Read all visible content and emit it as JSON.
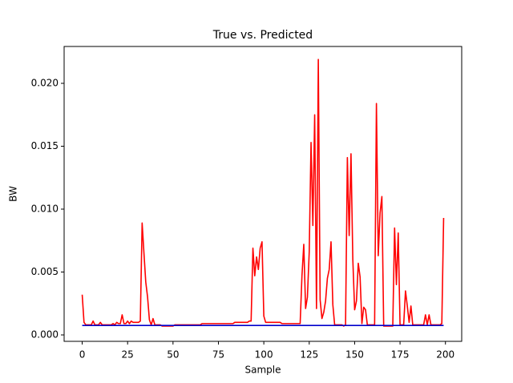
{
  "chart_data": {
    "type": "line",
    "title": "True vs. Predicted",
    "xlabel": "Sample",
    "ylabel": "BW",
    "x": [
      0,
      1,
      2,
      3,
      4,
      5,
      6,
      7,
      8,
      9,
      10,
      11,
      12,
      13,
      14,
      15,
      16,
      17,
      18,
      19,
      20,
      21,
      22,
      23,
      24,
      25,
      26,
      27,
      28,
      29,
      30,
      31,
      32,
      33,
      34,
      35,
      36,
      37,
      38,
      39,
      40,
      41,
      42,
      43,
      44,
      45,
      46,
      47,
      48,
      49,
      50,
      51,
      52,
      53,
      54,
      55,
      56,
      57,
      58,
      59,
      60,
      61,
      62,
      63,
      64,
      65,
      66,
      67,
      68,
      69,
      70,
      71,
      72,
      73,
      74,
      75,
      76,
      77,
      78,
      79,
      80,
      81,
      82,
      83,
      84,
      85,
      86,
      87,
      88,
      89,
      90,
      91,
      92,
      93,
      94,
      95,
      96,
      97,
      98,
      99,
      100,
      101,
      102,
      103,
      104,
      105,
      106,
      107,
      108,
      109,
      110,
      111,
      112,
      113,
      114,
      115,
      116,
      117,
      118,
      119,
      120,
      121,
      122,
      123,
      124,
      125,
      126,
      127,
      128,
      129,
      130,
      131,
      132,
      133,
      134,
      135,
      136,
      137,
      138,
      139,
      140,
      141,
      142,
      143,
      144,
      145,
      146,
      147,
      148,
      149,
      150,
      151,
      152,
      153,
      154,
      155,
      156,
      157,
      158,
      159,
      160,
      161,
      162,
      163,
      164,
      165,
      166,
      167,
      168,
      169,
      170,
      171,
      172,
      173,
      174,
      175,
      176,
      177,
      178,
      179,
      180,
      181,
      182,
      183,
      184,
      185,
      186,
      187,
      188,
      189,
      190,
      191,
      192,
      193,
      194,
      195,
      196,
      197,
      198,
      199
    ],
    "series": [
      {
        "color": "#ff0000",
        "values": [
          0.0032,
          0.001,
          0.0008,
          0.0008,
          0.0008,
          0.0008,
          0.0011,
          0.0008,
          0.0008,
          0.0008,
          0.001,
          0.0008,
          0.0008,
          0.0008,
          0.0008,
          0.0008,
          0.0008,
          0.0009,
          0.0008,
          0.001,
          0.0009,
          0.0009,
          0.0016,
          0.0009,
          0.0009,
          0.0011,
          0.0009,
          0.0011,
          0.001,
          0.001,
          0.001,
          0.001,
          0.0011,
          0.0089,
          0.0065,
          0.0042,
          0.003,
          0.0012,
          0.0008,
          0.0013,
          0.0008,
          0.0008,
          0.0008,
          0.0008,
          0.0007,
          0.0007,
          0.0007,
          0.0007,
          0.0007,
          0.0007,
          0.0007,
          0.0008,
          0.0008,
          0.0008,
          0.0008,
          0.0008,
          0.0008,
          0.0008,
          0.0008,
          0.0008,
          0.0008,
          0.0008,
          0.0008,
          0.0008,
          0.0008,
          0.0008,
          0.0009,
          0.0009,
          0.0009,
          0.0009,
          0.0009,
          0.0009,
          0.0009,
          0.0009,
          0.0009,
          0.0009,
          0.0009,
          0.0009,
          0.0009,
          0.0009,
          0.0009,
          0.0009,
          0.0009,
          0.0009,
          0.001,
          0.001,
          0.001,
          0.001,
          0.001,
          0.001,
          0.001,
          0.001,
          0.0011,
          0.0011,
          0.0069,
          0.0047,
          0.0062,
          0.0052,
          0.0069,
          0.0074,
          0.0015,
          0.001,
          0.001,
          0.001,
          0.001,
          0.001,
          0.001,
          0.001,
          0.001,
          0.001,
          0.0009,
          0.0009,
          0.0009,
          0.0009,
          0.0009,
          0.0009,
          0.0009,
          0.0009,
          0.0009,
          0.0009,
          0.0009,
          0.0047,
          0.0072,
          0.0021,
          0.003,
          0.0066,
          0.0153,
          0.0087,
          0.0175,
          0.0021,
          0.0219,
          0.0028,
          0.0013,
          0.0018,
          0.0027,
          0.0045,
          0.0052,
          0.0074,
          0.0024,
          0.0008,
          0.0008,
          0.0008,
          0.0008,
          0.0008,
          0.0007,
          0.0008,
          0.0141,
          0.0079,
          0.0144,
          0.006,
          0.002,
          0.0027,
          0.0057,
          0.0046,
          0.0009,
          0.0022,
          0.002,
          0.0008,
          0.0008,
          0.0008,
          0.0008,
          0.0008,
          0.0184,
          0.0063,
          0.0097,
          0.011,
          0.0007,
          0.0007,
          0.0007,
          0.0007,
          0.0007,
          0.0007,
          0.0085,
          0.004,
          0.0081,
          0.0008,
          0.0008,
          0.0008,
          0.0035,
          0.0023,
          0.001,
          0.0023,
          0.0008,
          0.0008,
          0.0008,
          0.0008,
          0.0008,
          0.0008,
          0.0008,
          0.0016,
          0.0008,
          0.0016,
          0.0008,
          0.0008,
          0.0008,
          0.0008,
          0.0008,
          0.0008,
          0.0009,
          0.0093
        ]
      },
      {
        "color": "#0000cc",
        "values": [
          0.00075,
          0.00075,
          0.00075,
          0.00075,
          0.00075,
          0.00075,
          0.00075,
          0.00075,
          0.00075,
          0.00075,
          0.00075,
          0.00075,
          0.00075,
          0.00075,
          0.00075,
          0.00075,
          0.00075,
          0.00075,
          0.00075,
          0.00075,
          0.00075,
          0.00075,
          0.00075,
          0.00075,
          0.00075,
          0.00075,
          0.00075,
          0.00075,
          0.00075,
          0.00075,
          0.00075,
          0.00075,
          0.00075,
          0.00075,
          0.00075,
          0.00075,
          0.00075,
          0.00075,
          0.00075,
          0.00075,
          0.00075,
          0.00075,
          0.00075,
          0.00075,
          0.00075,
          0.00075,
          0.00075,
          0.00075,
          0.00075,
          0.00075,
          0.00075,
          0.00075,
          0.00075,
          0.00075,
          0.00075,
          0.00075,
          0.00075,
          0.00075,
          0.00075,
          0.00075,
          0.00075,
          0.00075,
          0.00075,
          0.00075,
          0.00075,
          0.00075,
          0.00075,
          0.00075,
          0.00075,
          0.00075,
          0.00075,
          0.00075,
          0.00075,
          0.00075,
          0.00075,
          0.00075,
          0.00075,
          0.00075,
          0.00075,
          0.00075,
          0.00075,
          0.00075,
          0.00075,
          0.00075,
          0.00075,
          0.00075,
          0.00075,
          0.00075,
          0.00075,
          0.00075,
          0.00075,
          0.00075,
          0.00075,
          0.00075,
          0.00075,
          0.00075,
          0.00075,
          0.00075,
          0.00075,
          0.00075,
          0.00075,
          0.00075,
          0.00075,
          0.00075,
          0.00075,
          0.00075,
          0.00075,
          0.00075,
          0.00075,
          0.00075,
          0.00075,
          0.00075,
          0.00075,
          0.00075,
          0.00075,
          0.00075,
          0.00075,
          0.00075,
          0.00075,
          0.00075,
          0.00075,
          0.00075,
          0.00075,
          0.00075,
          0.00075,
          0.00075,
          0.00075,
          0.00075,
          0.00075,
          0.00075,
          0.00075,
          0.00075,
          0.00075,
          0.00075,
          0.00075,
          0.00075,
          0.00075,
          0.00075,
          0.00075,
          0.00075,
          0.00075,
          0.00075,
          0.00075,
          0.00075,
          0.00075,
          0.00075,
          0.00075,
          0.00075,
          0.00075,
          0.00075,
          0.00075,
          0.00075,
          0.00075,
          0.00075,
          0.00075,
          0.00075,
          0.00075,
          0.00075,
          0.00075,
          0.00075,
          0.00075,
          0.00075,
          0.00075,
          0.00075,
          0.00075,
          0.00075,
          0.00075,
          0.00075,
          0.00075,
          0.00075,
          0.00075,
          0.00075,
          0.00075,
          0.00075,
          0.00075,
          0.00075,
          0.00075,
          0.00075,
          0.00075,
          0.00075,
          0.00075,
          0.00075,
          0.00075,
          0.00075,
          0.00075,
          0.00075,
          0.00075,
          0.00075,
          0.00075,
          0.00075,
          0.00075,
          0.00075,
          0.00075,
          0.00075,
          0.00075,
          0.00075,
          0.00075,
          0.00075,
          0.00075,
          0.00075
        ]
      }
    ],
    "xlim": [
      -9.95,
      208.95
    ],
    "xticks": [
      0,
      25,
      50,
      75,
      100,
      125,
      150,
      175,
      200
    ],
    "ylim": [
      -0.00051,
      0.02293
    ],
    "yticks": [
      {
        "value": 0,
        "label": "0.000"
      },
      {
        "value": 0.005,
        "label": "0.005"
      },
      {
        "value": 0.01,
        "label": "0.010"
      },
      {
        "value": 0.015,
        "label": "0.015"
      },
      {
        "value": 0.02,
        "label": "0.020"
      }
    ],
    "grid": false
  }
}
